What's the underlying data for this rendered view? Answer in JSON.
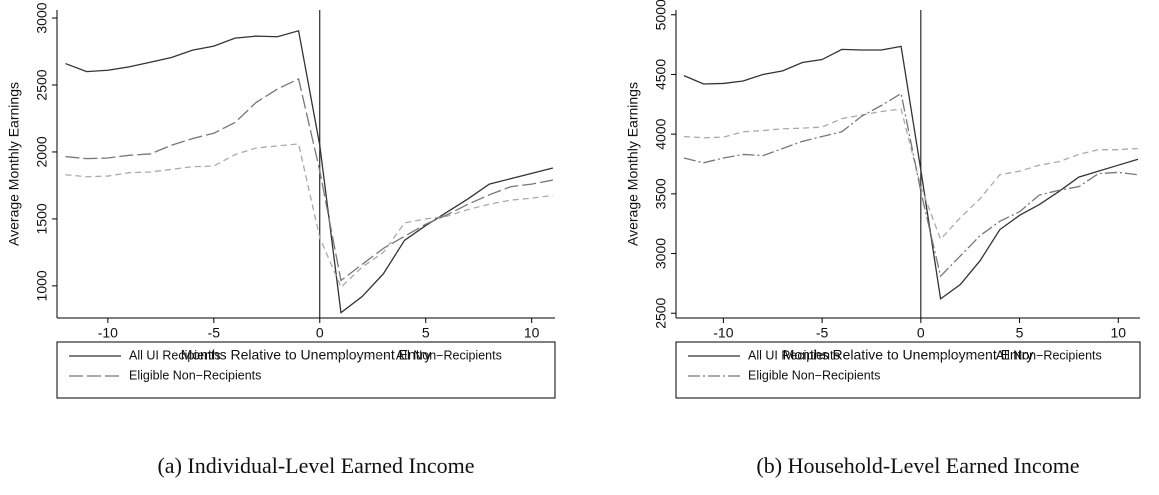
{
  "chart_data": [
    {
      "type": "line",
      "caption": "(a) Individual-Level Earned Income",
      "xlabel": "Months Relative to Unemployment Entry",
      "ylabel": "Average Monthly Earnings",
      "x": [
        -12,
        -11,
        -10,
        -9,
        -8,
        -7,
        -6,
        -5,
        -4,
        -3,
        -2,
        -1,
        0,
        1,
        2,
        3,
        4,
        5,
        6,
        7,
        8,
        9,
        10,
        11
      ],
      "xlim": [
        -12.4,
        11.1
      ],
      "xticks": [
        -10,
        -5,
        0,
        5,
        10
      ],
      "ylim": [
        760,
        3060
      ],
      "yticks": [
        1000,
        1500,
        2000,
        2500,
        3000
      ],
      "vline": 0,
      "series": [
        {
          "name": "All UI Recipients",
          "color": "#333333",
          "dash": "none",
          "values": [
            2660,
            2600,
            2610,
            2635,
            2670,
            2705,
            2760,
            2790,
            2850,
            2865,
            2860,
            2905,
            2050,
            800,
            920,
            1090,
            1340,
            1450,
            1550,
            1650,
            1760,
            1800,
            1840,
            1880
          ]
        },
        {
          "name": "All Non−Recipients",
          "color": "#aaaaaa",
          "dash": "6,4",
          "values": [
            1830,
            1815,
            1820,
            1845,
            1850,
            1870,
            1890,
            1895,
            1980,
            2030,
            2045,
            2060,
            1360,
            990,
            1140,
            1250,
            1470,
            1500,
            1520,
            1570,
            1610,
            1640,
            1655,
            1675
          ]
        },
        {
          "name": "Eligible Non−Recipients",
          "color": "#777777",
          "dash": "14,4",
          "values": [
            1965,
            1950,
            1955,
            1975,
            1985,
            2050,
            2100,
            2140,
            2220,
            2370,
            2470,
            2545,
            1860,
            1040,
            1160,
            1280,
            1370,
            1460,
            1530,
            1610,
            1680,
            1740,
            1760,
            1790
          ]
        }
      ]
    },
    {
      "type": "line",
      "caption": "(b) Household-Level Earned Income",
      "xlabel": "Months Relative to Unemployment Entry",
      "ylabel": "Average Monthly Earnings",
      "x": [
        -12,
        -11,
        -10,
        -9,
        -8,
        -7,
        -6,
        -5,
        -4,
        -3,
        -2,
        -1,
        0,
        1,
        2,
        3,
        4,
        5,
        6,
        7,
        8,
        9,
        10,
        11
      ],
      "xlim": [
        -12.4,
        11.1
      ],
      "xticks": [
        -10,
        -5,
        0,
        5,
        10
      ],
      "ylim": [
        2460,
        5040
      ],
      "yticks": [
        2500,
        3000,
        3500,
        4000,
        4500,
        5000
      ],
      "vline": 0,
      "series": [
        {
          "name": "All UI Recipients",
          "color": "#333333",
          "dash": "none",
          "values": [
            4490,
            4420,
            4425,
            4445,
            4500,
            4530,
            4600,
            4625,
            4710,
            4705,
            4705,
            4735,
            3700,
            2620,
            2740,
            2940,
            3200,
            3320,
            3410,
            3520,
            3640,
            3690,
            3740,
            3790
          ]
        },
        {
          "name": "All Non−Recipients",
          "color": "#aaaaaa",
          "dash": "6,4",
          "values": [
            3980,
            3970,
            3975,
            4020,
            4030,
            4045,
            4050,
            4060,
            4130,
            4160,
            4190,
            4210,
            3560,
            3120,
            3300,
            3460,
            3660,
            3690,
            3740,
            3770,
            3830,
            3870,
            3870,
            3880
          ]
        },
        {
          "name": "Eligible Non−Recipients",
          "color": "#777777",
          "dash": "12,3,2,3",
          "values": [
            3800,
            3760,
            3800,
            3830,
            3820,
            3880,
            3940,
            3980,
            4020,
            4150,
            4240,
            4340,
            3520,
            2810,
            2980,
            3150,
            3270,
            3350,
            3490,
            3530,
            3560,
            3670,
            3680,
            3660
          ]
        }
      ]
    }
  ]
}
